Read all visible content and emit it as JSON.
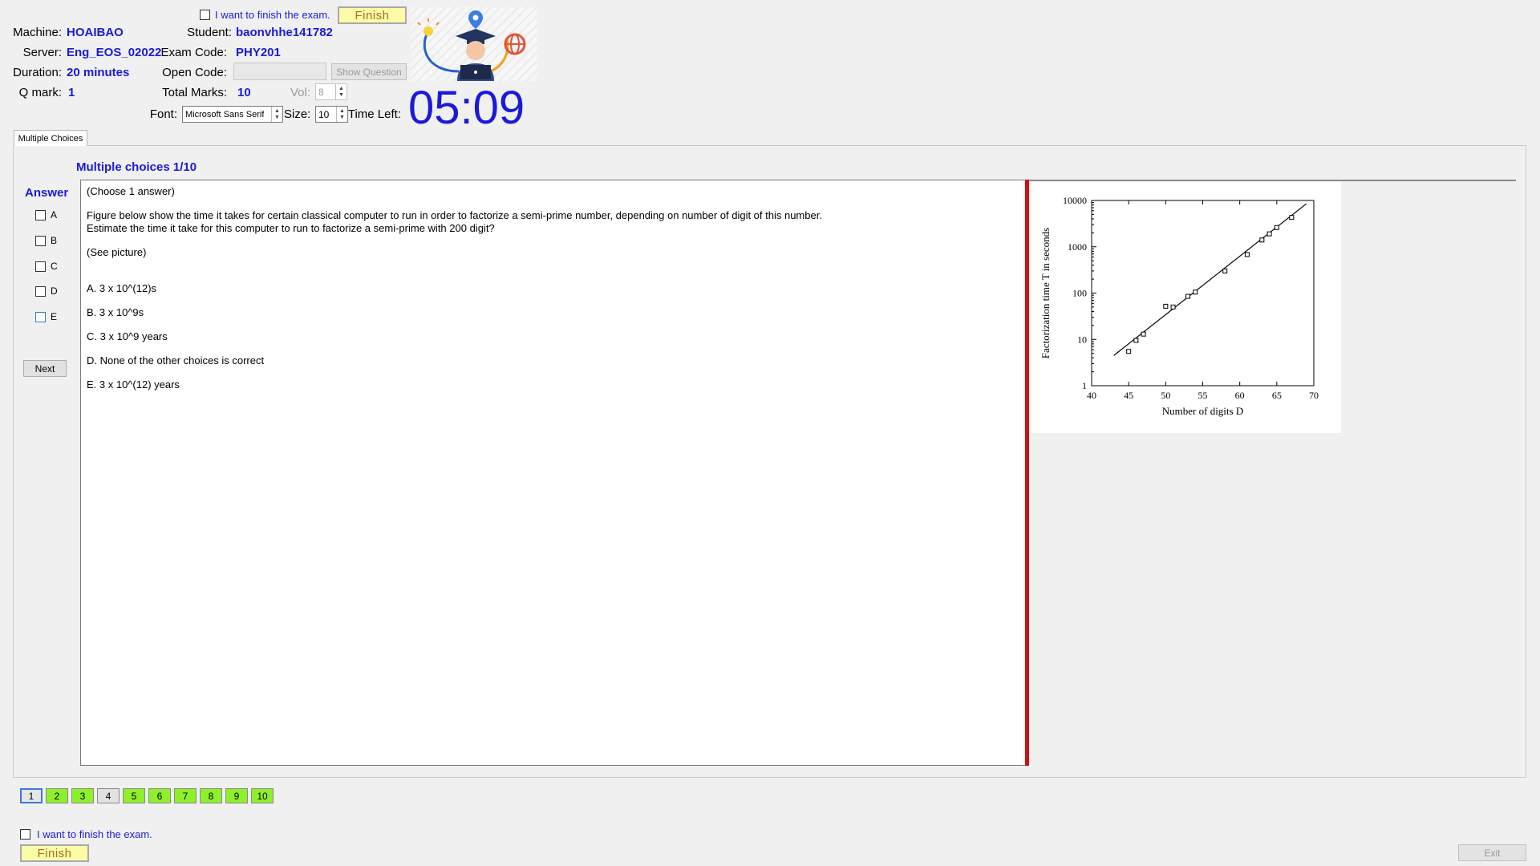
{
  "header": {
    "finish_checkbox_label": "I want to finish the exam.",
    "finish_button": "Finish",
    "machine_label": "Machine:",
    "machine_value": "HOAIBAO",
    "server_label": "Server:",
    "server_value": "Eng_EOS_02022",
    "duration_label": "Duration:",
    "duration_value": "20 minutes",
    "qmark_label": "Q mark:",
    "qmark_value": "1",
    "student_label": "Student:",
    "student_value": "baonvhhe141782",
    "exam_code_label": "Exam Code:",
    "exam_code_value": "PHY201",
    "open_code_label": "Open Code:",
    "open_code_value": "",
    "show_question_button": "Show Question",
    "total_marks_label": "Total Marks:",
    "total_marks_value": "10",
    "vol_label": "Vol:",
    "vol_value": "8",
    "font_label": "Font:",
    "font_value": "Microsoft Sans Serif",
    "size_label": "Size:",
    "size_value": "10",
    "time_left_label": "Time Left:",
    "time_left_value": "05:09"
  },
  "tabs": [
    {
      "label": "Multiple Choices",
      "active": true
    }
  ],
  "question": {
    "heading": "Multiple choices 1/10",
    "answer_label": "Answer",
    "choose_hint": "(Choose 1 answer)",
    "text_line1": "Figure below show the time it takes for certain classical computer to run in order to factorize a semi-prime number, depending on number of digit of this number.",
    "text_line2": "Estimate the time it take for this computer to run to factorize a semi-prime with 200 digit?",
    "see_picture": "(See picture)",
    "options": [
      "A.  3 x 10^(12)s",
      "B.  3 x 10^9s",
      "C.  3 x 10^9 years",
      "D.  None of the other choices is correct",
      "E.  3 x 10^(12) years"
    ],
    "answer_letters": [
      "A",
      "B",
      "C",
      "D",
      "E"
    ],
    "next_button": "Next"
  },
  "navigation": {
    "questions": [
      {
        "label": "1",
        "state": "current"
      },
      {
        "label": "2",
        "state": "answered"
      },
      {
        "label": "3",
        "state": "answered"
      },
      {
        "label": "4",
        "state": "plain"
      },
      {
        "label": "5",
        "state": "answered"
      },
      {
        "label": "6",
        "state": "answered"
      },
      {
        "label": "7",
        "state": "answered"
      },
      {
        "label": "8",
        "state": "answered"
      },
      {
        "label": "9",
        "state": "answered"
      },
      {
        "label": "10",
        "state": "answered"
      }
    ]
  },
  "footer": {
    "finish_checkbox_label": "I want to finish the exam.",
    "finish_button": "Finish",
    "exit_button": "Exit"
  },
  "colors": {
    "accent_blue": "#1a1ad8",
    "answered_green": "#8ef02a",
    "splitter_red": "#d01010",
    "finish_yellow": "#fbfba8"
  },
  "chart_data": {
    "type": "scatter",
    "xlabel": "Number of digits D",
    "ylabel": "Factorization time T in seconds",
    "xlim": [
      40,
      70
    ],
    "ylim": [
      1,
      10000
    ],
    "yscale": "log",
    "x_ticks": [
      "40",
      "45",
      "50",
      "55",
      "60",
      "65",
      "70"
    ],
    "y_ticks": [
      "1",
      "10",
      "100",
      "1000",
      "10000"
    ],
    "points": [
      {
        "x": 45,
        "y": 5.5
      },
      {
        "x": 46,
        "y": 9.5
      },
      {
        "x": 47,
        "y": 13
      },
      {
        "x": 50,
        "y": 52
      },
      {
        "x": 51,
        "y": 50
      },
      {
        "x": 53,
        "y": 85
      },
      {
        "x": 54,
        "y": 105
      },
      {
        "x": 58,
        "y": 300
      },
      {
        "x": 61,
        "y": 680
      },
      {
        "x": 63,
        "y": 1400
      },
      {
        "x": 64,
        "y": 1900
      },
      {
        "x": 65,
        "y": 2600
      },
      {
        "x": 67,
        "y": 4300
      }
    ],
    "fit_line": [
      {
        "x": 43,
        "y": 4.5
      },
      {
        "x": 69,
        "y": 8500
      }
    ]
  }
}
